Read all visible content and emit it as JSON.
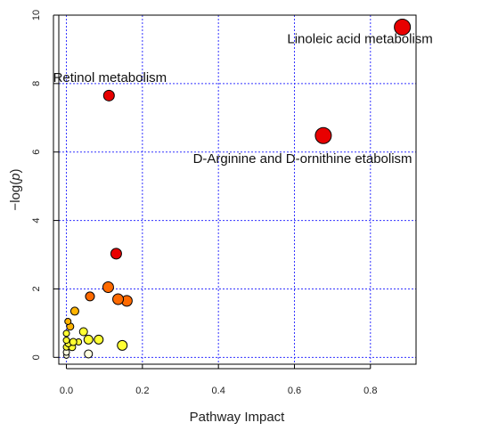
{
  "chart_data": {
    "type": "scatter",
    "title": "",
    "xlabel": "Pathway Impact",
    "ylabel_main": "−log(",
    "ylabel_var": "p",
    "ylabel_end": ")",
    "xlim": [
      -0.02,
      0.92
    ],
    "ylim": [
      -0.2,
      10
    ],
    "xticks": [
      0.0,
      0.2,
      0.4,
      0.6,
      0.8
    ],
    "xtick_labels": [
      "0.0",
      "0.2",
      "0.4",
      "0.6",
      "0.8"
    ],
    "yticks": [
      0,
      2,
      4,
      6,
      8,
      10
    ],
    "ytick_labels": [
      "0",
      "2",
      "4",
      "6",
      "8",
      "10"
    ],
    "grid": true,
    "grid_color": "#3333ff",
    "color_scale": [
      "#ffffe0",
      "#ffff33",
      "#ffb300",
      "#ff6a00",
      "#ff2a00",
      "#e80000"
    ],
    "points": [
      {
        "x": 0.884,
        "y": 9.65,
        "size": 9
      },
      {
        "x": 0.676,
        "y": 6.48,
        "size": 9
      },
      {
        "x": 0.112,
        "y": 7.65,
        "size": 6
      },
      {
        "x": 0.131,
        "y": 3.03,
        "size": 6
      },
      {
        "x": 0.11,
        "y": 2.05,
        "size": 6
      },
      {
        "x": 0.136,
        "y": 1.7,
        "size": 6
      },
      {
        "x": 0.159,
        "y": 1.65,
        "size": 6
      },
      {
        "x": 0.062,
        "y": 1.78,
        "size": 5
      },
      {
        "x": 0.022,
        "y": 1.35,
        "size": 4.5
      },
      {
        "x": 0.004,
        "y": 1.05,
        "size": 3.5
      },
      {
        "x": 0.01,
        "y": 0.9,
        "size": 4
      },
      {
        "x": 0.0,
        "y": 0.7,
        "size": 3.5
      },
      {
        "x": 0.045,
        "y": 0.75,
        "size": 4.5
      },
      {
        "x": 0.058,
        "y": 0.52,
        "size": 5
      },
      {
        "x": 0.085,
        "y": 0.52,
        "size": 5
      },
      {
        "x": 0.032,
        "y": 0.45,
        "size": 3.5
      },
      {
        "x": 0.0,
        "y": 0.5,
        "size": 3.5
      },
      {
        "x": 0.018,
        "y": 0.45,
        "size": 4
      },
      {
        "x": 0.005,
        "y": 0.4,
        "size": 3.5
      },
      {
        "x": 0.0,
        "y": 0.3,
        "size": 3.5
      },
      {
        "x": 0.015,
        "y": 0.3,
        "size": 4
      },
      {
        "x": 0.147,
        "y": 0.35,
        "size": 5.5
      },
      {
        "x": 0.0,
        "y": 0.15,
        "size": 3.5
      },
      {
        "x": 0.058,
        "y": 0.1,
        "size": 4.5
      },
      {
        "x": 0.0,
        "y": 0.05,
        "size": 3
      }
    ],
    "annotations": [
      {
        "text": "Linoleic acid metabolism",
        "x": 0.581,
        "y": 9.18
      },
      {
        "text": "Retinol metabolism",
        "x": -0.035,
        "y": 8.05
      },
      {
        "text": "D-Arginine and D-ornithine etabolism",
        "x": 0.333,
        "y": 5.68
      }
    ]
  }
}
